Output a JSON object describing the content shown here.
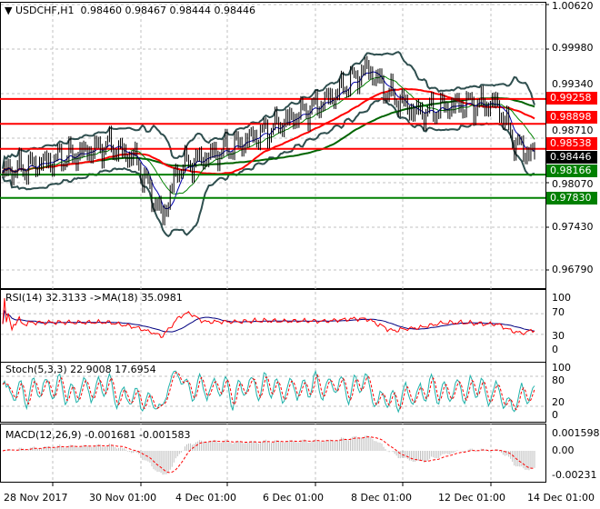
{
  "header": {
    "symbol": "USDCHF,H1",
    "open": "0.98460",
    "high": "0.98467",
    "low": "0.98444",
    "close": "0.98446"
  },
  "price_axis": [
    "1.00620",
    "0.99980",
    "0.99340",
    "0.98710",
    "0.98070",
    "0.97430",
    "0.96790"
  ],
  "levels": [
    {
      "label": "0.99258",
      "value": 0.99258,
      "color": "#ff0000"
    },
    {
      "label": "0.98898",
      "value": 0.98898,
      "color": "#ff0000"
    },
    {
      "label": "0.98538",
      "value": 0.98538,
      "color": "#ff0000"
    },
    {
      "label": "0.98166",
      "value": 0.98166,
      "color": "#008000"
    },
    {
      "label": "0.97830",
      "value": 0.9783,
      "color": "#008000"
    }
  ],
  "current_price": {
    "label": "0.98446",
    "value": 0.98446
  },
  "rsi": {
    "title": "RSI(14) 32.3133  ->MA(18) 35.0981",
    "axis": [
      "100",
      "70",
      "30",
      "0"
    ]
  },
  "stoch": {
    "title": "Stoch(5,3,3) 22.9008 17.6954",
    "axis": [
      "100",
      "80",
      "20",
      "0"
    ]
  },
  "macd": {
    "title": "MACD(12,26,9) -0.001681 -0.001583",
    "axis": [
      "0.001598",
      "0.00",
      "-0.00231"
    ]
  },
  "time_axis": [
    "28 Nov 2017",
    "30 Nov 01:00",
    "4 Dec 01:00",
    "6 Dec 01:00",
    "8 Dec 01:00",
    "12 Dec 01:00",
    "14 Dec 01:00"
  ],
  "chart_data": {
    "type": "line",
    "title": "USDCHF,H1",
    "ylim": [
      0.9679,
      1.0062
    ],
    "anchor_closes": [
      0.9819,
      0.9846,
      0.9859,
      0.9839,
      0.9754,
      0.9826,
      0.9859,
      0.9885,
      0.9924,
      0.997,
      0.9931,
      0.9905,
      0.9918,
      0.9918,
      0.9859,
      0.98446
    ],
    "anchor_positions": [
      0,
      0.14,
      0.2,
      0.25,
      0.3,
      0.33,
      0.44,
      0.51,
      0.61,
      0.685,
      0.73,
      0.78,
      0.86,
      0.93,
      0.965,
      1
    ]
  }
}
